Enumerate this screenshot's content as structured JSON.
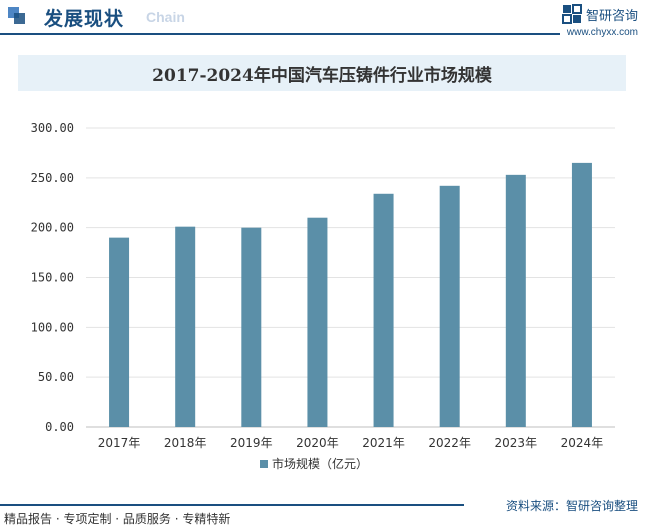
{
  "header": {
    "title": "发展现状",
    "subtitle": "Chain"
  },
  "brand": {
    "name": "智研咨询",
    "url": "www.chyxx.com"
  },
  "footer": {
    "tagline": "精品报告 · 专项定制 · 品质服务 · 专精特新",
    "source": "资料来源：智研咨询整理"
  },
  "colors": {
    "accent": "#1a4f80",
    "bar": "#5b8fa8",
    "title_bg": "#e7f1f8"
  },
  "chart_data": {
    "type": "bar",
    "title": "2017-2024年中国汽车压铸件行业市场规模",
    "categories": [
      "2017年",
      "2018年",
      "2019年",
      "2020年",
      "2021年",
      "2022年",
      "2023年",
      "2024年"
    ],
    "series": [
      {
        "name": "市场规模（亿元）",
        "values": [
          190,
          201,
          200,
          210,
          234,
          242,
          253,
          265
        ]
      }
    ],
    "ylim": [
      0,
      300
    ],
    "yticks": [
      "0.00",
      "50.00",
      "100.00",
      "150.00",
      "200.00",
      "250.00",
      "300.00"
    ],
    "xlabel": "",
    "ylabel": "",
    "grid": true,
    "legend": "bottom-center"
  }
}
